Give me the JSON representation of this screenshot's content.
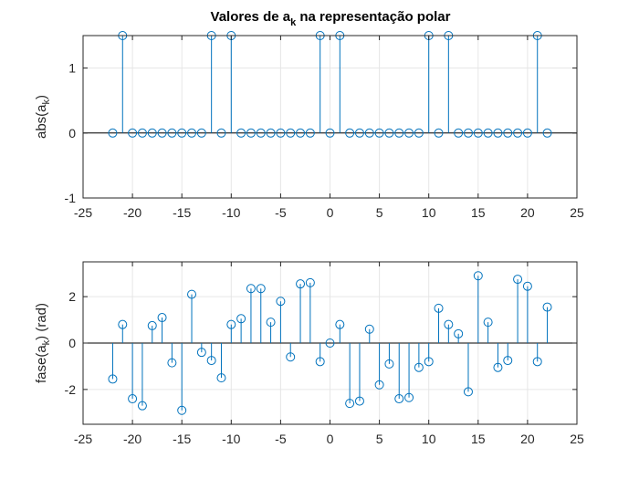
{
  "figure": {
    "title": "Valores de a",
    "title_subscript": "k",
    "title_suffix": " na representação polar"
  },
  "chart_data": [
    {
      "type": "stem",
      "ylabel_prefix": "abs(a",
      "ylabel_subscript": "k",
      "ylabel_suffix": ")",
      "xlim": [
        -25,
        25
      ],
      "ylim": [
        -1,
        1.5
      ],
      "xticks": [
        -25,
        -20,
        -15,
        -10,
        -5,
        0,
        5,
        10,
        15,
        20,
        25
      ],
      "yticks": [
        -1,
        0,
        1
      ],
      "grid": true,
      "color": "#0072BD",
      "x": [
        -22,
        -21,
        -20,
        -19,
        -18,
        -17,
        -16,
        -15,
        -14,
        -13,
        -12,
        -11,
        -10,
        -9,
        -8,
        -7,
        -6,
        -5,
        -4,
        -3,
        -2,
        -1,
        0,
        1,
        2,
        3,
        4,
        5,
        6,
        7,
        8,
        9,
        10,
        11,
        12,
        13,
        14,
        15,
        16,
        17,
        18,
        19,
        20,
        21,
        22
      ],
      "y": [
        0,
        1.5,
        0,
        0,
        0,
        0,
        0,
        0,
        0,
        0,
        1.5,
        0,
        1.5,
        0,
        0,
        0,
        0,
        0,
        0,
        0,
        0,
        1.5,
        0,
        1.5,
        0,
        0,
        0,
        0,
        0,
        0,
        0,
        0,
        1.5,
        0,
        1.5,
        0,
        0,
        0,
        0,
        0,
        0,
        0,
        0,
        1.5,
        0
      ]
    },
    {
      "type": "stem",
      "ylabel_prefix": "fase(a",
      "ylabel_subscript": "k",
      "ylabel_suffix": ") (rad)",
      "xlim": [
        -25,
        25
      ],
      "ylim": [
        -3.5,
        3.5
      ],
      "xticks": [
        -25,
        -20,
        -15,
        -10,
        -5,
        0,
        5,
        10,
        15,
        20,
        25
      ],
      "yticks": [
        -2,
        0,
        2
      ],
      "grid": true,
      "color": "#0072BD",
      "x": [
        -22,
        -21,
        -20,
        -19,
        -18,
        -17,
        -16,
        -15,
        -14,
        -13,
        -12,
        -11,
        -10,
        -9,
        -8,
        -7,
        -6,
        -5,
        -4,
        -3,
        -2,
        -1,
        0,
        1,
        2,
        3,
        4,
        5,
        6,
        7,
        8,
        9,
        10,
        11,
        12,
        13,
        14,
        15,
        16,
        17,
        18,
        19,
        20,
        21,
        22
      ],
      "y": [
        -1.55,
        0.8,
        -2.4,
        -2.7,
        0.75,
        1.1,
        -0.85,
        -2.9,
        2.1,
        -0.4,
        -0.75,
        -1.5,
        0.8,
        1.05,
        2.35,
        2.35,
        0.9,
        1.8,
        -0.6,
        2.55,
        2.6,
        -0.8,
        0,
        0.8,
        -2.6,
        -2.5,
        0.6,
        -1.8,
        -0.9,
        -2.4,
        -2.35,
        -1.05,
        -0.8,
        1.5,
        0.8,
        0.4,
        -2.1,
        2.9,
        0.9,
        -1.05,
        -0.75,
        2.75,
        2.45,
        -0.8,
        1.55
      ]
    }
  ]
}
